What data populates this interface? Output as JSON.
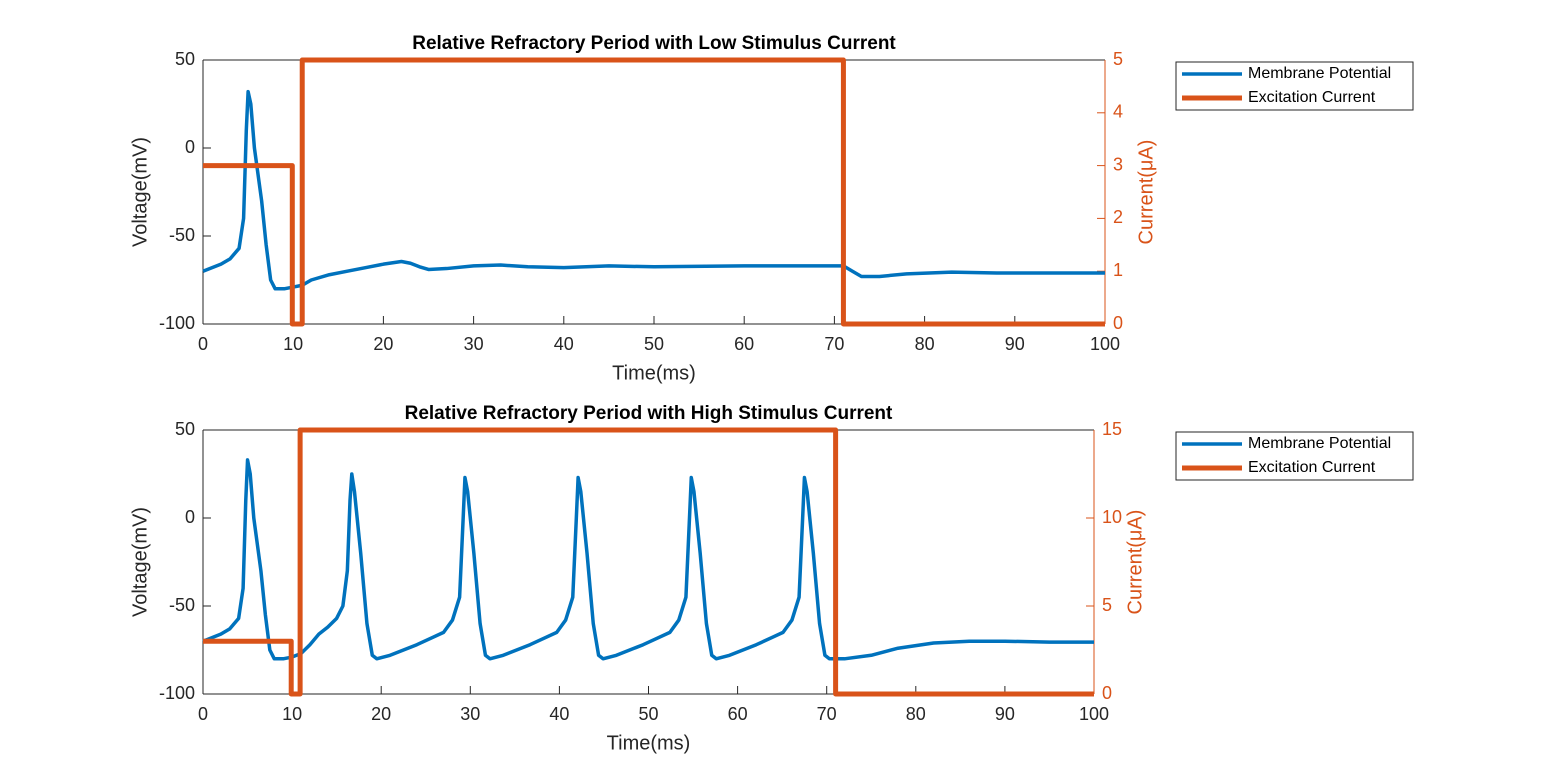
{
  "chart_data": [
    {
      "type": "line",
      "title": "Relative Refractory Period with Low Stimulus Current",
      "xlabel": "Time(ms)",
      "ylabel": "Voltage(mV)",
      "y2label": "Current(μA)",
      "xlim": [
        0,
        100
      ],
      "xticks": [
        0,
        10,
        20,
        30,
        40,
        50,
        60,
        70,
        80,
        90,
        100
      ],
      "ylim": [
        -100,
        50
      ],
      "yticks": [
        -100,
        -50,
        0,
        50
      ],
      "y2lim": [
        0,
        5
      ],
      "y2ticks": [
        0,
        1,
        2,
        3,
        4,
        5
      ],
      "legend": "outside-right-top",
      "series": [
        {
          "name": "Membrane Potential",
          "color": "#0072BD",
          "x": [
            0,
            2,
            3,
            4,
            4.5,
            4.8,
            5,
            5.3,
            5.7,
            6.5,
            7,
            7.5,
            8,
            9,
            10,
            11,
            12,
            14,
            16,
            18,
            20,
            22,
            23,
            24,
            25,
            27,
            30,
            33,
            36,
            40,
            45,
            50,
            60,
            70,
            71,
            72,
            73,
            75,
            78,
            83,
            88,
            95,
            100
          ],
          "values": [
            -70,
            -66,
            -63,
            -57,
            -40,
            10,
            32,
            25,
            0,
            -30,
            -55,
            -75,
            -80,
            -80,
            -79,
            -78,
            -75,
            -72,
            -70,
            -68,
            -66,
            -64.5,
            -65.5,
            -67.5,
            -69,
            -68.5,
            -67,
            -66.5,
            -67.5,
            -68,
            -67,
            -67.5,
            -67,
            -67,
            -67,
            -70,
            -73,
            -73,
            -71.5,
            -70.5,
            -71,
            -71,
            -71
          ]
        },
        {
          "name": "Excitation Current",
          "color": "#D95319",
          "axis": "y2",
          "x": [
            0,
            9.9,
            9.9,
            11,
            11,
            71,
            71,
            100
          ],
          "values": [
            3,
            3,
            0,
            0,
            5,
            5,
            0,
            0
          ]
        }
      ]
    },
    {
      "type": "line",
      "title": "Relative Refractory Period with High Stimulus Current",
      "xlabel": "Time(ms)",
      "ylabel": "Voltage(mV)",
      "y2label": "Current(μA)",
      "xlim": [
        0,
        100
      ],
      "xticks": [
        0,
        10,
        20,
        30,
        40,
        50,
        60,
        70,
        80,
        90,
        100
      ],
      "ylim": [
        -100,
        50
      ],
      "yticks": [
        -100,
        -50,
        0,
        50
      ],
      "y2lim": [
        0,
        15
      ],
      "y2ticks": [
        0,
        5,
        10,
        15
      ],
      "legend": "outside-right-top",
      "series": [
        {
          "name": "Membrane Potential",
          "color": "#0072BD",
          "x": [
            0,
            2,
            3,
            4,
            4.5,
            4.8,
            5,
            5.3,
            5.7,
            6.5,
            7,
            7.5,
            8,
            9,
            10,
            11,
            12,
            13,
            14,
            15,
            15.7,
            16.2,
            16.5,
            16.7,
            17,
            17.7,
            18.4,
            19,
            19.5,
            21,
            24,
            27,
            28,
            28.8,
            29.2,
            29.4,
            29.7,
            30.4,
            31.1,
            31.7,
            32.2,
            33.7,
            36.7,
            39.7,
            40.7,
            41.5,
            41.9,
            42.1,
            42.4,
            43.1,
            43.8,
            44.4,
            44.9,
            46.4,
            49.4,
            52.4,
            53.4,
            54.2,
            54.6,
            54.8,
            55.1,
            55.8,
            56.5,
            57.1,
            57.6,
            59.1,
            62.1,
            65.1,
            66.1,
            66.9,
            67.3,
            67.5,
            67.8,
            68.5,
            69.2,
            69.8,
            70.3,
            71,
            72,
            75,
            78,
            82,
            86,
            90,
            95,
            100
          ],
          "values": [
            -70,
            -66,
            -63,
            -57,
            -40,
            10,
            33,
            25,
            0,
            -30,
            -55,
            -75,
            -80,
            -80,
            -79,
            -77,
            -72,
            -66,
            -62,
            -57,
            -50,
            -30,
            10,
            25,
            15,
            -20,
            -60,
            -78,
            -80,
            -78,
            -72,
            -65,
            -58,
            -45,
            0,
            23,
            15,
            -20,
            -60,
            -78,
            -80,
            -78,
            -72,
            -65,
            -58,
            -45,
            0,
            23,
            15,
            -20,
            -60,
            -78,
            -80,
            -78,
            -72,
            -65,
            -58,
            -45,
            0,
            23,
            15,
            -20,
            -60,
            -78,
            -80,
            -78,
            -72,
            -65,
            -58,
            -45,
            0,
            23,
            15,
            -20,
            -60,
            -78,
            -80,
            -80,
            -80,
            -78,
            -74,
            -71,
            -70,
            -70,
            -70.5,
            -70.5
          ]
        },
        {
          "name": "Excitation Current",
          "color": "#D95319",
          "axis": "y2",
          "x": [
            0,
            9.9,
            9.9,
            10.9,
            10.9,
            71,
            71,
            100
          ],
          "values": [
            3,
            3,
            0,
            0,
            15,
            15,
            0,
            0
          ]
        }
      ]
    }
  ]
}
